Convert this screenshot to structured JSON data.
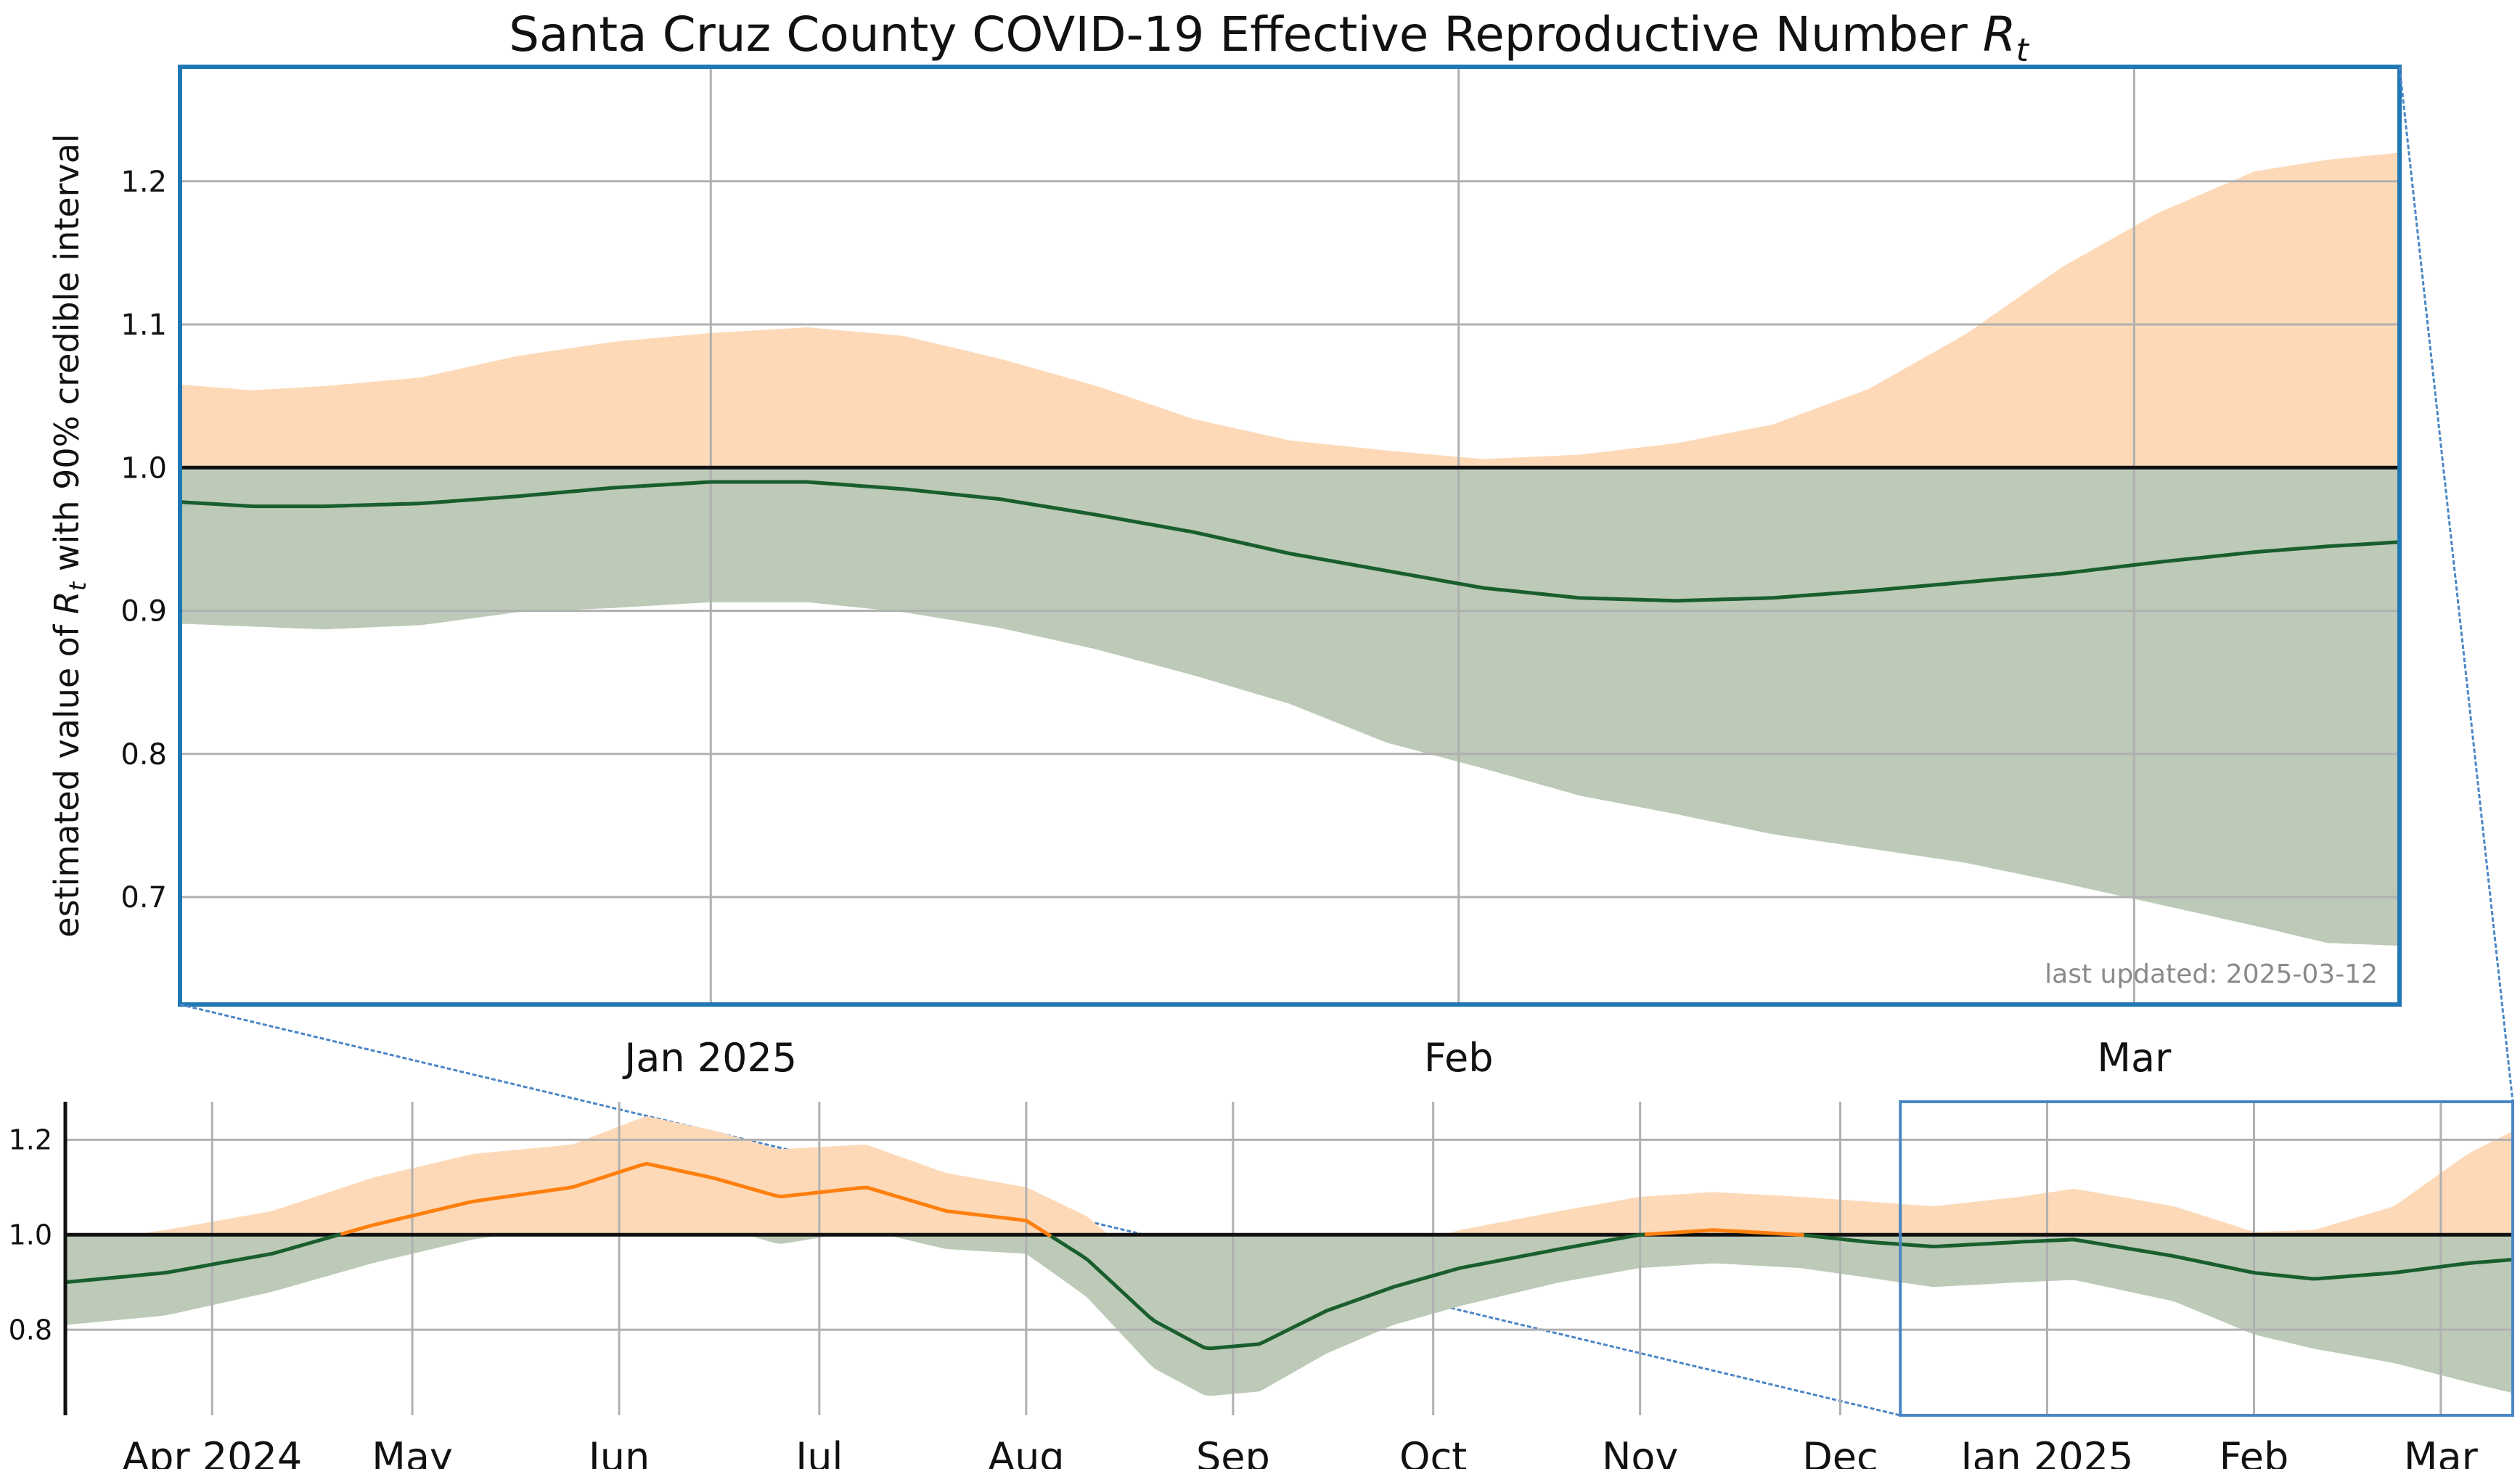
{
  "chart_data": [
    {
      "type": "area",
      "title": "Santa Cruz County COVID-19 Effective Reproductive Number",
      "title_symbol": "R",
      "title_subscript": "t",
      "ylabel_prefix": "estimated value of ",
      "ylabel_symbol": "R",
      "ylabel_subscript": "t",
      "ylabel_suffix": " with 90% credible interval",
      "annotation": "last updated: 2025-03-12",
      "xlim": [
        "2024-12-10",
        "2025-03-12"
      ],
      "ylim": [
        0.625,
        1.28
      ],
      "yticks": [
        0.7,
        0.8,
        0.9,
        1.0,
        1.1,
        1.2
      ],
      "xticks": [
        {
          "date": "2025-01-01",
          "label": "Jan 2025"
        },
        {
          "date": "2025-02-01",
          "label": "Feb"
        },
        {
          "date": "2025-03-01",
          "label": "Mar"
        }
      ],
      "reference_line": 1.0,
      "grid": true,
      "colors": {
        "above_one": "#ff7f0e",
        "below_one": "#1a5e2e",
        "band_above": "#fdd9b8",
        "band_below": "#bccab7",
        "frame": "#1f77b4"
      },
      "series": [
        {
          "dates": [
            "2024-12-10",
            "2024-12-13",
            "2024-12-16",
            "2024-12-20",
            "2024-12-24",
            "2024-12-28",
            "2025-01-01",
            "2025-01-05",
            "2025-01-09",
            "2025-01-13",
            "2025-01-17",
            "2025-01-21",
            "2025-01-25",
            "2025-01-29",
            "2025-02-02",
            "2025-02-06",
            "2025-02-10",
            "2025-02-14",
            "2025-02-18",
            "2025-02-22",
            "2025-02-26",
            "2025-03-02",
            "2025-03-06",
            "2025-03-09",
            "2025-03-12"
          ],
          "median": [
            0.976,
            0.973,
            0.973,
            0.975,
            0.98,
            0.986,
            0.99,
            0.99,
            0.985,
            0.978,
            0.967,
            0.955,
            0.94,
            0.928,
            0.916,
            0.909,
            0.907,
            0.909,
            0.914,
            0.92,
            0.926,
            0.934,
            0.941,
            0.945,
            0.948
          ],
          "lower": [
            0.891,
            0.889,
            0.887,
            0.89,
            0.899,
            0.902,
            0.906,
            0.906,
            0.899,
            0.888,
            0.873,
            0.855,
            0.835,
            0.808,
            0.79,
            0.771,
            0.758,
            0.744,
            0.734,
            0.724,
            0.71,
            0.695,
            0.68,
            0.668,
            0.666
          ],
          "upper": [
            1.058,
            1.054,
            1.057,
            1.063,
            1.078,
            1.088,
            1.094,
            1.098,
            1.092,
            1.076,
            1.057,
            1.034,
            1.019,
            1.012,
            1.006,
            1.009,
            1.017,
            1.03,
            1.055,
            1.093,
            1.14,
            1.178,
            1.207,
            1.215,
            1.22
          ]
        }
      ]
    },
    {
      "type": "area",
      "xlim": [
        "2024-03-10",
        "2025-03-12"
      ],
      "ylim": [
        0.62,
        1.28
      ],
      "yticks": [
        0.8,
        1.0,
        1.2
      ],
      "xticks": [
        {
          "date": "2024-04-01",
          "label": "Apr 2024"
        },
        {
          "date": "2024-05-01",
          "label": "May"
        },
        {
          "date": "2024-06-01",
          "label": "Jun"
        },
        {
          "date": "2024-07-01",
          "label": "Jul"
        },
        {
          "date": "2024-08-01",
          "label": "Aug"
        },
        {
          "date": "2024-09-01",
          "label": "Sep"
        },
        {
          "date": "2024-10-01",
          "label": "Oct"
        },
        {
          "date": "2024-11-01",
          "label": "Nov"
        },
        {
          "date": "2024-12-01",
          "label": "Dec"
        },
        {
          "date": "2025-01-01",
          "label": "Jan 2025"
        },
        {
          "date": "2025-02-01",
          "label": "Feb"
        },
        {
          "date": "2025-03-01",
          "label": "Mar"
        }
      ],
      "reference_line": 1.0,
      "grid": true,
      "zoom_window": [
        "2024-12-10",
        "2025-03-12"
      ],
      "series": [
        {
          "dates": [
            "2024-03-10",
            "2024-03-25",
            "2024-04-10",
            "2024-04-25",
            "2024-05-10",
            "2024-05-25",
            "2024-06-05",
            "2024-06-15",
            "2024-06-25",
            "2024-07-08",
            "2024-07-20",
            "2024-08-01",
            "2024-08-10",
            "2024-08-20",
            "2024-08-28",
            "2024-09-05",
            "2024-09-15",
            "2024-09-25",
            "2024-10-05",
            "2024-10-20",
            "2024-11-01",
            "2024-11-12",
            "2024-11-25",
            "2024-12-05",
            "2024-12-15",
            "2024-12-28",
            "2025-01-05",
            "2025-01-20",
            "2025-02-01",
            "2025-02-10",
            "2025-02-22",
            "2025-03-05",
            "2025-03-12"
          ],
          "median": [
            0.9,
            0.92,
            0.96,
            1.02,
            1.07,
            1.1,
            1.15,
            1.12,
            1.08,
            1.1,
            1.05,
            1.03,
            0.95,
            0.82,
            0.76,
            0.77,
            0.84,
            0.89,
            0.93,
            0.97,
            1.0,
            1.01,
            1.0,
            0.985,
            0.975,
            0.985,
            0.99,
            0.955,
            0.92,
            0.907,
            0.92,
            0.94,
            0.948
          ],
          "lower": [
            0.81,
            0.83,
            0.88,
            0.94,
            0.99,
            1.02,
            1.05,
            1.02,
            0.98,
            1.01,
            0.97,
            0.96,
            0.87,
            0.72,
            0.66,
            0.67,
            0.75,
            0.81,
            0.85,
            0.9,
            0.93,
            0.94,
            0.93,
            0.91,
            0.89,
            0.9,
            0.905,
            0.86,
            0.79,
            0.76,
            0.73,
            0.69,
            0.666
          ],
          "upper": [
            0.98,
            1.01,
            1.05,
            1.12,
            1.17,
            1.19,
            1.25,
            1.22,
            1.18,
            1.19,
            1.13,
            1.1,
            1.04,
            0.92,
            0.85,
            0.86,
            0.93,
            0.97,
            1.01,
            1.05,
            1.08,
            1.09,
            1.08,
            1.07,
            1.06,
            1.08,
            1.097,
            1.06,
            1.006,
            1.01,
            1.06,
            1.17,
            1.22
          ]
        }
      ]
    }
  ]
}
